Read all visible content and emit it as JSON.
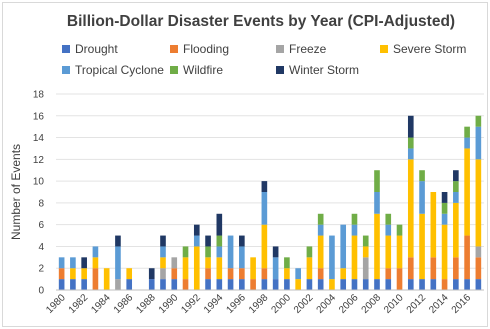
{
  "chart_data": {
    "type": "bar",
    "stacked": true,
    "title": "Billion-Dollar Disaster Events by Year (CPI-Adjusted)",
    "xlabel": "",
    "ylabel": "Number of Events",
    "ylim": [
      0,
      18
    ],
    "yticks": [
      0,
      2,
      4,
      6,
      8,
      10,
      12,
      14,
      16,
      18
    ],
    "grid": true,
    "legend_position": "top",
    "categories": [
      "1980",
      "1981",
      "1982",
      "1983",
      "1984",
      "1985",
      "1986",
      "1987",
      "1988",
      "1989",
      "1990",
      "1991",
      "1992",
      "1993",
      "1994",
      "1995",
      "1996",
      "1997",
      "1998",
      "1999",
      "2000",
      "2001",
      "2002",
      "2003",
      "2004",
      "2005",
      "2006",
      "2007",
      "2008",
      "2009",
      "2010",
      "2011",
      "2012",
      "2013",
      "2014",
      "2015",
      "2016",
      "2017"
    ],
    "x_tick_labels": [
      "1980",
      "1982",
      "1984",
      "1986",
      "1988",
      "1990",
      "1992",
      "1994",
      "1996",
      "1998",
      "2000",
      "2002",
      "2004",
      "2006",
      "2008",
      "2010",
      "2012",
      "2014",
      "2016"
    ],
    "series": [
      {
        "name": "Drought",
        "color": "#4472c4",
        "values": [
          1,
          1,
          1,
          0,
          0,
          0,
          1,
          0,
          1,
          1,
          1,
          0,
          0,
          1,
          1,
          1,
          1,
          0,
          1,
          1,
          1,
          0,
          1,
          1,
          0,
          1,
          1,
          1,
          1,
          1,
          0,
          1,
          1,
          1,
          0,
          1,
          1,
          1
        ]
      },
      {
        "name": "Flooding",
        "color": "#ed7d31",
        "values": [
          1,
          0,
          0,
          2,
          0,
          0,
          0,
          0,
          0,
          0,
          1,
          1,
          0,
          1,
          0,
          1,
          1,
          1,
          1,
          0,
          0,
          0,
          0,
          1,
          0,
          0,
          0,
          0,
          0,
          1,
          2,
          2,
          0,
          2,
          1,
          2,
          4,
          2
        ]
      },
      {
        "name": "Freeze",
        "color": "#a5a5a5",
        "values": [
          0,
          0,
          0,
          0,
          0,
          1,
          0,
          0,
          0,
          1,
          1,
          0,
          0,
          0,
          0,
          0,
          0,
          0,
          0,
          0,
          0,
          0,
          0,
          0,
          0,
          0,
          0,
          2,
          0,
          0,
          0,
          0,
          0,
          0,
          0,
          0,
          0,
          1
        ]
      },
      {
        "name": "Severe Storm",
        "color": "#ffc000",
        "values": [
          0,
          1,
          1,
          1,
          2,
          0,
          1,
          0,
          0,
          1,
          0,
          2,
          4,
          1,
          2,
          0,
          0,
          2,
          4,
          0,
          1,
          1,
          2,
          3,
          1,
          1,
          4,
          1,
          6,
          3,
          3,
          9,
          6,
          6,
          5,
          5,
          8,
          8
        ]
      },
      {
        "name": "Tropical Cyclone",
        "color": "#5b9bd5",
        "values": [
          1,
          1,
          0,
          1,
          0,
          3,
          0,
          0,
          0,
          1,
          0,
          0,
          1,
          0,
          1,
          3,
          2,
          0,
          3,
          2,
          0,
          1,
          0,
          1,
          4,
          4,
          1,
          0,
          2,
          1,
          0,
          1,
          3,
          0,
          1,
          1,
          1,
          3
        ]
      },
      {
        "name": "Wildfire",
        "color": "#70ad47",
        "values": [
          0,
          0,
          0,
          0,
          0,
          0,
          0,
          0,
          0,
          0,
          0,
          1,
          0,
          1,
          1,
          0,
          0,
          0,
          0,
          0,
          1,
          0,
          1,
          1,
          0,
          0,
          1,
          1,
          2,
          1,
          1,
          1,
          1,
          0,
          1,
          1,
          1,
          1
        ]
      },
      {
        "name": "Winter Storm",
        "color": "#203864",
        "values": [
          0,
          0,
          1,
          0,
          0,
          1,
          0,
          0,
          1,
          1,
          0,
          0,
          1,
          1,
          2,
          0,
          1,
          0,
          1,
          1,
          0,
          0,
          0,
          0,
          0,
          0,
          0,
          0,
          0,
          0,
          0,
          2,
          0,
          0,
          1,
          1,
          0,
          0
        ]
      }
    ]
  }
}
